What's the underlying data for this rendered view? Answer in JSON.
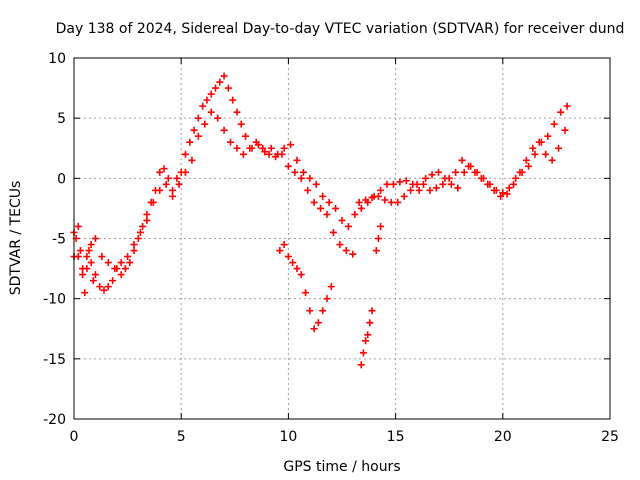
{
  "chart_data": {
    "type": "scatter",
    "title": "Day 138 of 2024, Sidereal Day-to-day VTEC variation (SDTVAR) for receiver dund",
    "xlabel": "GPS time / hours",
    "ylabel": "SDTVAR / TECUs",
    "xlim": [
      0,
      25
    ],
    "ylim": [
      -20,
      10
    ],
    "xticks": [
      0,
      5,
      10,
      15,
      20,
      25
    ],
    "yticks": [
      -20,
      -15,
      -10,
      -5,
      0,
      5,
      10
    ],
    "grid": true,
    "marker": "+",
    "series": [
      {
        "name": "SDTVAR",
        "color": "#ff0000",
        "x": [
          0.0,
          0.1,
          0.2,
          0.3,
          0.4,
          0.5,
          0.6,
          0.7,
          0.8,
          0.9,
          1.0,
          1.2,
          1.4,
          1.6,
          1.8,
          2.0,
          2.2,
          2.4,
          2.6,
          2.8,
          3.0,
          3.2,
          3.4,
          3.6,
          3.8,
          4.0,
          4.2,
          4.4,
          4.6,
          4.8,
          5.0,
          5.2,
          5.4,
          5.6,
          5.8,
          6.0,
          6.2,
          6.4,
          6.6,
          6.8,
          7.0,
          7.2,
          7.4,
          7.6,
          7.8,
          8.0,
          8.3,
          8.6,
          8.9,
          9.2,
          9.5,
          9.8,
          10.1,
          10.4,
          10.7,
          11.0,
          11.3,
          11.6,
          11.9,
          12.2,
          12.5,
          12.8,
          13.1,
          13.4,
          13.7,
          14.0,
          14.3,
          14.6,
          14.9,
          15.2,
          15.5,
          15.8,
          16.1,
          16.4,
          16.7,
          17.0,
          17.3,
          17.6,
          17.9,
          18.2,
          18.5,
          18.8,
          19.1,
          19.4,
          19.7,
          20.0,
          20.3,
          20.6,
          20.9,
          21.2,
          21.5,
          21.8,
          22.1,
          22.4,
          22.7,
          23.0
        ],
        "y": [
          -6.5,
          -5.0,
          -4.0,
          -6.0,
          -8.0,
          -9.5,
          -7.5,
          -6.0,
          -7.0,
          -8.5,
          -8.0,
          -9.0,
          -9.3,
          -9.0,
          -8.5,
          -7.5,
          -8.0,
          -7.5,
          -7.0,
          -6.0,
          -5.0,
          -4.0,
          -3.0,
          -2.0,
          -1.0,
          0.5,
          0.8,
          0.0,
          -1.0,
          0.0,
          0.5,
          2.0,
          3.0,
          4.0,
          5.0,
          6.0,
          6.5,
          7.0,
          7.5,
          8.0,
          8.5,
          7.5,
          6.5,
          5.5,
          4.5,
          3.5,
          2.5,
          2.8,
          2.2,
          2.5,
          2.0,
          2.5,
          2.8,
          1.5,
          0.5,
          0.0,
          -0.5,
          -1.5,
          -2.0,
          -2.5,
          -3.5,
          -4.0,
          -3.0,
          -2.5,
          -2.0,
          -1.5,
          -1.0,
          -0.5,
          -0.5,
          -0.3,
          -0.2,
          -0.5,
          -1.0,
          0.0,
          0.3,
          0.5,
          0.0,
          -0.5,
          -0.8,
          0.5,
          1.0,
          0.5,
          0.0,
          -0.5,
          -1.0,
          -1.2,
          -0.8,
          0.0,
          0.5,
          1.0,
          2.0,
          3.0,
          3.5,
          4.5,
          5.5,
          6.0
        ]
      },
      {
        "name": "SDTVAR-b",
        "color": "#ff0000",
        "x": [
          0.0,
          0.2,
          0.4,
          0.6,
          0.8,
          1.0,
          1.3,
          1.6,
          1.9,
          2.2,
          2.5,
          2.8,
          3.1,
          3.4,
          3.7,
          4.0,
          4.3,
          4.6,
          4.9,
          5.2,
          5.5,
          5.8,
          6.1,
          6.4,
          6.7,
          7.0,
          7.3,
          7.6,
          7.9,
          8.2,
          8.5,
          8.8,
          9.1,
          9.4,
          9.7,
          10.0,
          10.3,
          10.6,
          10.9,
          11.2,
          11.5,
          11.8,
          12.1,
          12.4,
          12.7,
          13.0,
          13.3,
          13.6,
          13.9,
          14.2,
          14.5,
          14.8,
          15.1,
          15.4,
          15.7,
          16.0,
          16.3,
          16.6,
          16.9,
          17.2,
          17.5,
          17.8,
          18.1,
          18.4,
          18.7,
          19.0,
          19.3,
          19.6,
          19.9,
          20.2,
          20.5,
          20.8,
          21.1,
          21.4,
          21.7,
          22.0,
          22.3,
          22.6,
          22.9
        ],
        "y": [
          -4.5,
          -6.5,
          -7.5,
          -6.5,
          -5.5,
          -5.0,
          -6.5,
          -7.0,
          -7.5,
          -7.0,
          -6.5,
          -5.5,
          -4.5,
          -3.5,
          -2.0,
          -1.0,
          -0.5,
          -1.5,
          -0.5,
          0.5,
          1.5,
          3.5,
          4.5,
          5.5,
          5.0,
          4.0,
          3.0,
          2.5,
          2.0,
          2.5,
          3.0,
          2.5,
          2.0,
          1.8,
          2.0,
          1.0,
          0.5,
          0.0,
          -1.0,
          -2.0,
          -2.5,
          -3.0,
          -4.5,
          -5.5,
          -6.0,
          -6.3,
          -2.0,
          -1.8,
          -1.6,
          -1.5,
          -1.8,
          -2.0,
          -2.0,
          -1.5,
          -1.0,
          -0.5,
          -0.5,
          -1.0,
          -0.8,
          -0.5,
          0.0,
          0.5,
          1.5,
          1.0,
          0.5,
          0.0,
          -0.5,
          -1.0,
          -1.5,
          -1.3,
          -0.5,
          0.5,
          1.5,
          2.5,
          3.0,
          2.0,
          1.5,
          2.5,
          4.0
        ]
      },
      {
        "name": "SDTVAR-c",
        "color": "#ff0000",
        "x": [
          9.6,
          9.8,
          10.0,
          10.2,
          10.4,
          10.6,
          10.8,
          11.0,
          11.2,
          11.4,
          11.6,
          11.8,
          12.0,
          13.4,
          13.5,
          13.6,
          13.7,
          13.8,
          13.9,
          14.1,
          14.2,
          14.3
        ],
        "y": [
          -6.0,
          -5.5,
          -6.5,
          -7.0,
          -7.5,
          -8.0,
          -9.5,
          -11.0,
          -12.5,
          -12.0,
          -11.0,
          -10.0,
          -9.0,
          -15.5,
          -14.5,
          -13.5,
          -13.0,
          -12.0,
          -11.0,
          -6.0,
          -5.0,
          -4.0
        ]
      }
    ]
  }
}
